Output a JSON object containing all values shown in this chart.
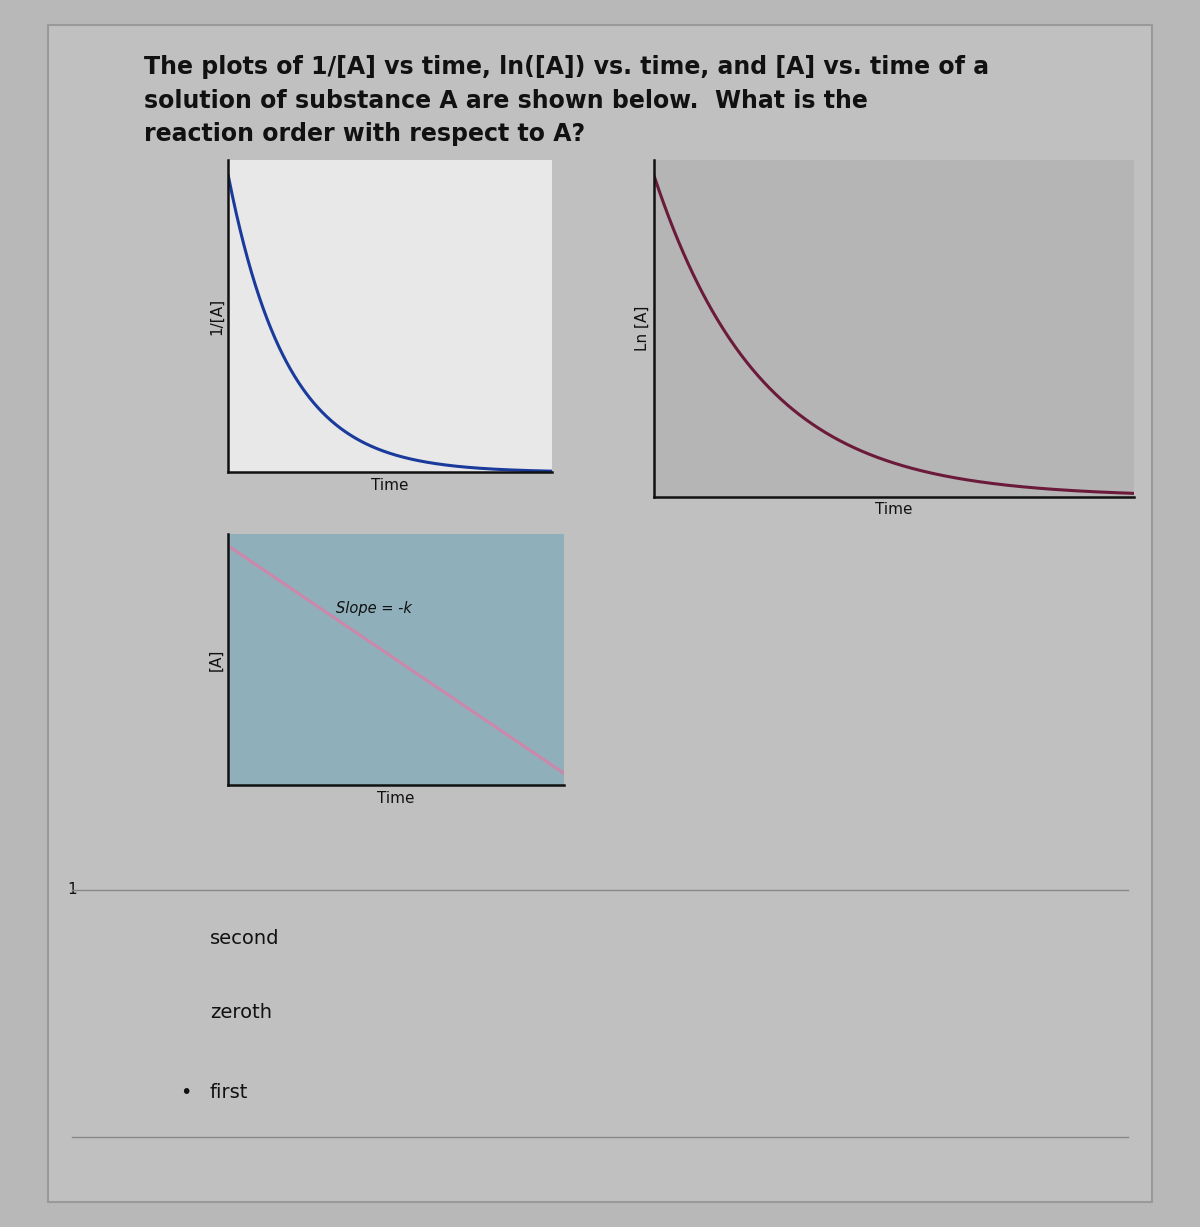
{
  "title_text": "The plots of 1/[A] vs time, ln([A]) vs. time, and [A] vs. time of a\nsolution of substance A are shown below.  What is the\nreaction order with respect to A?",
  "title_fontsize": 17,
  "title_color": "#111111",
  "bg_color": "#b8b8b8",
  "graph1_bg": "#e8e8e8",
  "graph2_bg": "#b5b5b5",
  "graph3_bg": "#8fafba",
  "graph1_line_color": "#1a3a9c",
  "graph2_line_color": "#6b1a3a",
  "graph3_line_color": "#cc88aa",
  "graph1_ylabel": "1/[A]",
  "graph2_ylabel": "Ln [A]",
  "graph3_ylabel": "[A]",
  "xlabel": "Time",
  "slope_label": "Slope = -k",
  "choices": [
    "second",
    "zeroth",
    "first"
  ],
  "selected_choice": 2,
  "choice_fontsize": 14,
  "axes_color": "#111111",
  "separator_color": "#888888",
  "outer_border_color": "#999999"
}
